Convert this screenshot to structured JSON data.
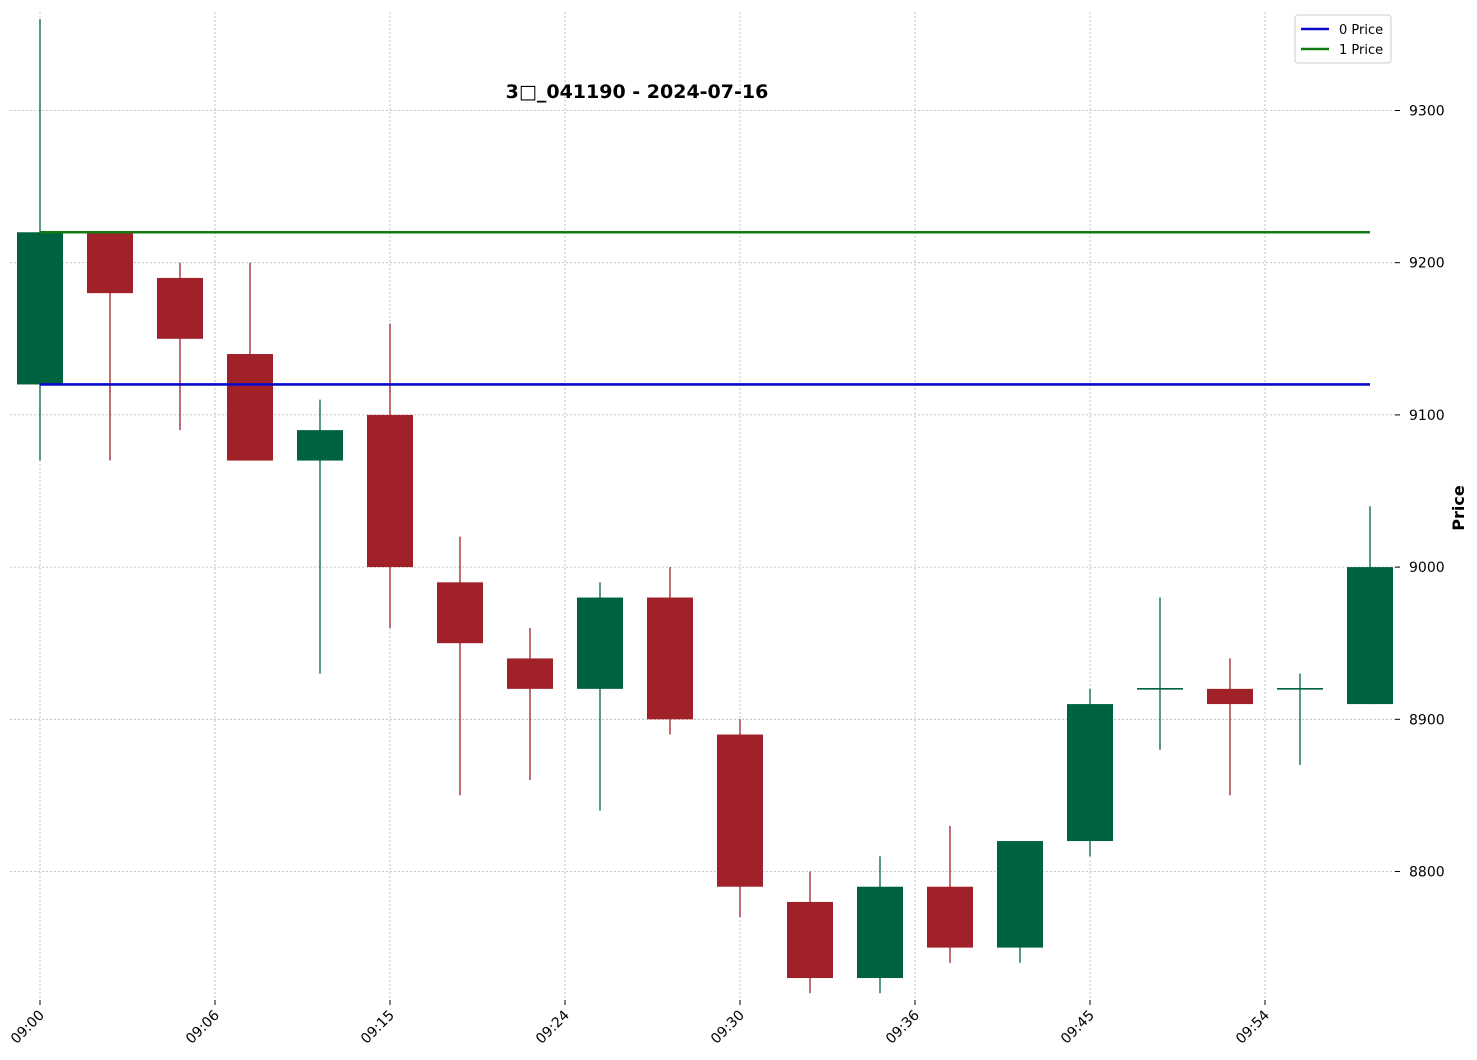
{
  "chart_data": {
    "type": "candlestick",
    "title": "3□_041190 - 2024-07-16",
    "xlabel": "",
    "ylabel": "Price",
    "ylim": [
      8715,
      9365
    ],
    "y_ticks": [
      8800,
      8900,
      9000,
      9100,
      9200,
      9300
    ],
    "x_tick_labels": [
      "09:00",
      "09:06",
      "09:15",
      "09:24",
      "09:30",
      "09:36",
      "09:45",
      "09:54"
    ],
    "x_tick_positions": [
      0,
      2.5,
      5,
      7.5,
      10,
      12.5,
      15,
      17.5
    ],
    "grid": true,
    "up_color": "#006340",
    "down_color": "#a02128",
    "candles": [
      {
        "o": 9120,
        "h": 9360,
        "l": 9070,
        "c": 9220
      },
      {
        "o": 9220,
        "h": 9220,
        "l": 9070,
        "c": 9180
      },
      {
        "o": 9190,
        "h": 9200,
        "l": 9090,
        "c": 9150
      },
      {
        "o": 9140,
        "h": 9200,
        "l": 9070,
        "c": 9070
      },
      {
        "o": 9070,
        "h": 9110,
        "l": 8930,
        "c": 9090
      },
      {
        "o": 9100,
        "h": 9160,
        "l": 8960,
        "c": 9000
      },
      {
        "o": 8990,
        "h": 9020,
        "l": 8850,
        "c": 8950
      },
      {
        "o": 8940,
        "h": 8960,
        "l": 8860,
        "c": 8920
      },
      {
        "o": 8920,
        "h": 8990,
        "l": 8840,
        "c": 8980
      },
      {
        "o": 8980,
        "h": 9000,
        "l": 8890,
        "c": 8900
      },
      {
        "o": 8890,
        "h": 8900,
        "l": 8770,
        "c": 8790
      },
      {
        "o": 8780,
        "h": 8800,
        "l": 8720,
        "c": 8730
      },
      {
        "o": 8730,
        "h": 8810,
        "l": 8720,
        "c": 8790
      },
      {
        "o": 8790,
        "h": 8830,
        "l": 8740,
        "c": 8750
      },
      {
        "o": 8750,
        "h": 8820,
        "l": 8740,
        "c": 8820
      },
      {
        "o": 8820,
        "h": 8920,
        "l": 8810,
        "c": 8910
      },
      {
        "o": 8920,
        "h": 8980,
        "l": 8880,
        "c": 8920
      },
      {
        "o": 8920,
        "h": 8940,
        "l": 8850,
        "c": 8910
      },
      {
        "o": 8920,
        "h": 8930,
        "l": 8870,
        "c": 8920
      },
      {
        "o": 8910,
        "h": 9040,
        "l": 8910,
        "c": 9000
      }
    ],
    "lines": [
      {
        "name": "0 Price",
        "value": 9120,
        "color": "#0a0acc"
      },
      {
        "name": "1 Price",
        "value": 9220,
        "color": "#127a12"
      }
    ],
    "legend_position": "top-right"
  }
}
